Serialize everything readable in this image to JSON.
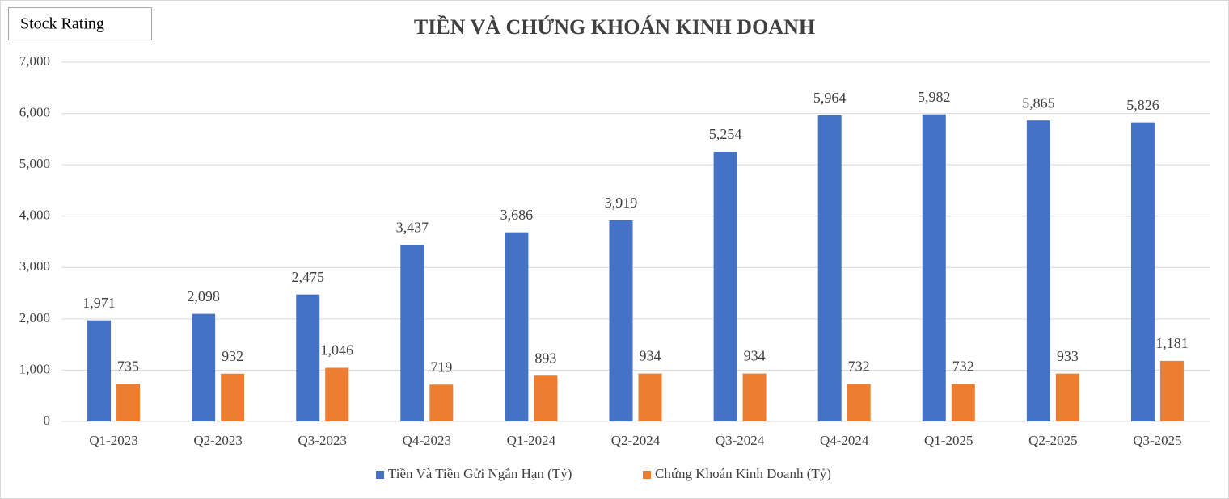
{
  "chart_data": {
    "type": "bar",
    "title": "TIỀN VÀ CHỨNG KHOÁN KINH DOANH",
    "annotation": "Stock Rating",
    "categories": [
      "Q1-2023",
      "Q2-2023",
      "Q3-2023",
      "Q4-2023",
      "Q1-2024",
      "Q2-2024",
      "Q3-2024",
      "Q4-2024",
      "Q1-2025",
      "Q2-2025",
      "Q3-2025"
    ],
    "series": [
      {
        "name": "Tiền Và Tiền Gửi Ngắn Hạn (Tỷ)",
        "color": "#4472c4",
        "values": [
          1971,
          2098,
          2475,
          3437,
          3686,
          3919,
          5254,
          5964,
          5982,
          5865,
          5826
        ],
        "value_labels": [
          "1,971",
          "2,098",
          "2,475",
          "3,437",
          "3,686",
          "3,919",
          "5,254",
          "5,964",
          "5,982",
          "5,865",
          "5,826"
        ]
      },
      {
        "name": "Chứng Khoán Kinh Doanh (Tỷ)",
        "color": "#ed7d31",
        "values": [
          735,
          932,
          1046,
          719,
          893,
          934,
          934,
          732,
          732,
          933,
          1181
        ],
        "value_labels": [
          "735",
          "932",
          "1,046",
          "719",
          "893",
          "934",
          "934",
          "732",
          "732",
          "933",
          "1,181"
        ]
      }
    ],
    "ylim": [
      0,
      7000
    ],
    "yticks": [
      0,
      {
        "value": 1000,
        "label": "1,000"
      },
      {
        "value": 2000,
        "label": "2,000"
      },
      {
        "value": 3000,
        "label": "3,000"
      },
      {
        "value": 4000,
        "label": "4,000"
      },
      {
        "value": 5000,
        "label": "5,000"
      },
      {
        "value": 6000,
        "label": "6,000"
      },
      {
        "value": 7000,
        "label": "7,000"
      }
    ],
    "grid": true,
    "legend": "bottom"
  }
}
